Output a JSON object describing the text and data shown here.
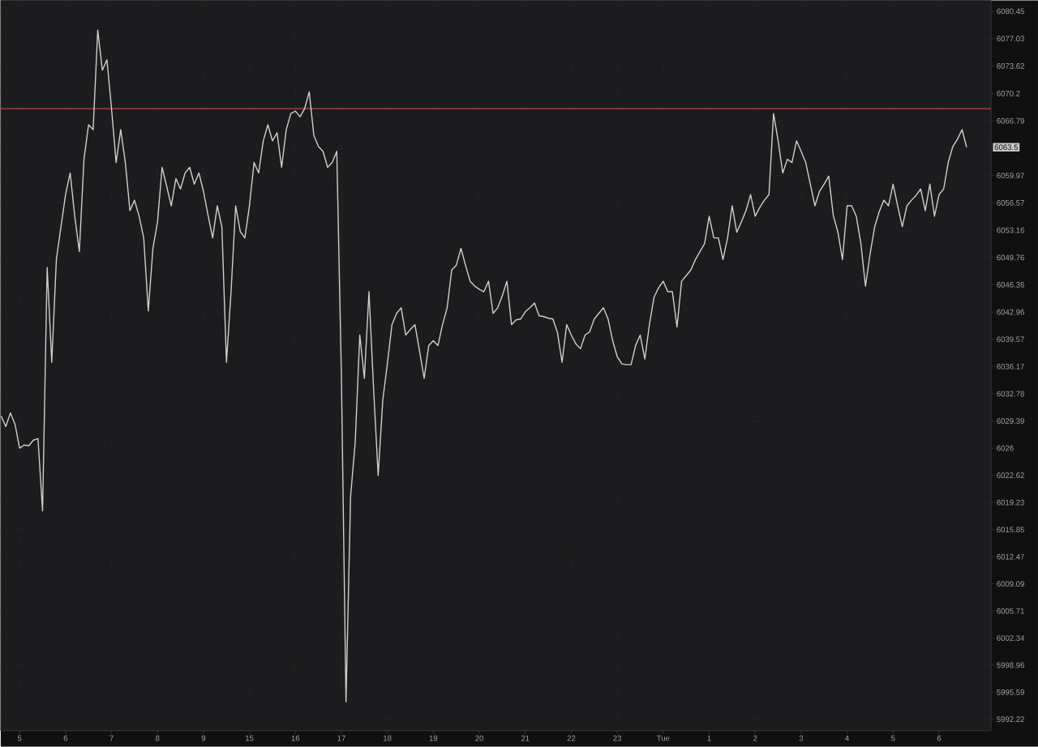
{
  "chart_data": {
    "type": "line",
    "categories": [
      null,
      null,
      null,
      null,
      "5",
      null,
      null,
      null,
      null,
      null,
      null,
      null,
      null,
      null,
      "6",
      null,
      null,
      null,
      null,
      null,
      null,
      null,
      null,
      null,
      "7",
      null,
      null,
      null,
      null,
      null,
      null,
      null,
      null,
      null,
      "8",
      null,
      null,
      null,
      null,
      null,
      null,
      null,
      null,
      null,
      "9",
      null,
      null,
      null,
      null,
      null,
      null,
      null,
      null,
      null,
      "15",
      null,
      null,
      null,
      null,
      null,
      null,
      null,
      null,
      null,
      "16",
      null,
      null,
      null,
      null,
      null,
      null,
      null,
      null,
      null,
      "17",
      null,
      null,
      null,
      null,
      null,
      null,
      null,
      null,
      null,
      "18",
      null,
      null,
      null,
      null,
      null,
      null,
      null,
      null,
      null,
      "19",
      null,
      null,
      null,
      null,
      null,
      null,
      null,
      null,
      null,
      "20",
      null,
      null,
      null,
      null,
      null,
      null,
      null,
      null,
      null,
      "21",
      null,
      null,
      null,
      null,
      null,
      null,
      null,
      null,
      null,
      "22",
      null,
      null,
      null,
      null,
      null,
      null,
      null,
      null,
      null,
      "23",
      null,
      null,
      null,
      null,
      null,
      null,
      null,
      null,
      null,
      "Tue",
      null,
      null,
      null,
      null,
      null,
      null,
      null,
      null,
      null,
      "1",
      null,
      null,
      null,
      null,
      null,
      null,
      null,
      null,
      null,
      "2",
      null,
      null,
      null,
      null,
      null,
      null,
      null,
      null,
      null,
      "3",
      null,
      null,
      null,
      null,
      null,
      null,
      null,
      null,
      null,
      "4",
      null,
      null,
      null,
      null,
      null,
      null,
      null,
      null,
      null,
      "5",
      null,
      null,
      null,
      null,
      null,
      null,
      null,
      null,
      null,
      "6",
      null,
      null,
      null,
      null,
      null,
      null
    ],
    "ylim": [
      5990.8,
      6081.8
    ],
    "yticks": [
      6080.45,
      6077.03,
      6073.62,
      6070.2,
      6066.79,
      {
        "value": 6063.38,
        "label": null
      },
      6059.97,
      6056.57,
      6053.16,
      6049.76,
      6046.36,
      6042.96,
      6039.57,
      6036.17,
      6032.78,
      6029.39,
      6026,
      6022.62,
      6019.23,
      6015.85,
      6012.47,
      6009.09,
      6005.71,
      6002.34,
      5998.96,
      5995.59,
      5992.22
    ],
    "grid": true,
    "color": "#cfcfcf",
    "values": [
      6030.0,
      6028.7,
      6030.4,
      6029.0,
      6026.0,
      6026.4,
      6026.3,
      6027.0,
      6027.2,
      6018.2,
      6048.5,
      6036.7,
      6049.5,
      6053.6,
      6057.6,
      6060.3,
      6054.9,
      6050.5,
      6062.0,
      6066.3,
      6065.7,
      6078.1,
      6073.1,
      6074.4,
      6068.3,
      6061.6,
      6065.7,
      6061.6,
      6055.6,
      6056.9,
      6054.9,
      6052.2,
      6043.1,
      6050.9,
      6054.2,
      6061.0,
      6058.6,
      6056.2,
      6059.6,
      6058.3,
      6060.3,
      6061.0,
      6058.9,
      6060.3,
      6058.0,
      6055.0,
      6052.2,
      6056.2,
      6053.6,
      6036.7,
      6045.5,
      6056.2,
      6053.0,
      6052.2,
      6056.2,
      6061.6,
      6060.3,
      6064.3,
      6066.3,
      6064.3,
      6065.3,
      6061.0,
      6065.7,
      6067.7,
      6068.0,
      6067.3,
      6068.3,
      6070.4,
      6065.0,
      6063.6,
      6063.0,
      6061.0,
      6061.6,
      6063.0,
      6035.0,
      5994.4,
      6020.0,
      6026.7,
      6040.1,
      6034.7,
      6045.5,
      6033.4,
      6022.6,
      6032.0,
      6036.5,
      6041.4,
      6042.8,
      6043.5,
      6040.1,
      6040.8,
      6041.4,
      6038.1,
      6034.7,
      6038.8,
      6039.4,
      6038.8,
      6041.4,
      6043.5,
      6048.2,
      6048.8,
      6050.9,
      6048.8,
      6046.8,
      6046.2,
      6045.8,
      6045.5,
      6046.8,
      6042.8,
      6043.5,
      6045.0,
      6046.8,
      6041.4,
      6042.0,
      6042.1,
      6043.0,
      6043.5,
      6044.1,
      6042.5,
      6042.4,
      6042.2,
      6042.1,
      6040.4,
      6036.7,
      6041.4,
      6040.1,
      6039.0,
      6038.4,
      6040.1,
      6040.5,
      6042.1,
      6042.8,
      6043.5,
      6042.1,
      6039.4,
      6037.4,
      6036.5,
      6036.4,
      6036.4,
      6038.8,
      6040.1,
      6037.1,
      6041.4,
      6044.8,
      6046.0,
      6046.8,
      6045.5,
      6045.5,
      6041.1,
      6046.8,
      6047.5,
      6048.2,
      6049.5,
      6050.5,
      6051.5,
      6054.9,
      6052.2,
      6052.2,
      6049.5,
      6052.2,
      6056.2,
      6052.9,
      6054.2,
      6055.6,
      6057.6,
      6054.9,
      6056.0,
      6056.9,
      6057.6,
      6067.7,
      6064.3,
      6060.3,
      6062.0,
      6061.6,
      6064.3,
      6063.0,
      6061.6,
      6058.9,
      6056.2,
      6058.0,
      6058.9,
      6059.9,
      6055.0,
      6052.9,
      6049.5,
      6056.2,
      6056.2,
      6054.9,
      6051.5,
      6046.2,
      6050.2,
      6053.6,
      6055.5,
      6056.9,
      6056.2,
      6058.9,
      6056.2,
      6053.6,
      6056.2,
      6056.9,
      6057.5,
      6058.3,
      6055.6,
      6058.9,
      6054.9,
      6057.6,
      6058.3,
      6061.6,
      6063.6,
      6064.5,
      6065.7,
      6063.5
    ],
    "ref_lines": [
      {
        "axis": "y",
        "value": 6068.3,
        "color": "#8c3c3c"
      }
    ],
    "annotations": [
      "6063.5"
    ]
  }
}
